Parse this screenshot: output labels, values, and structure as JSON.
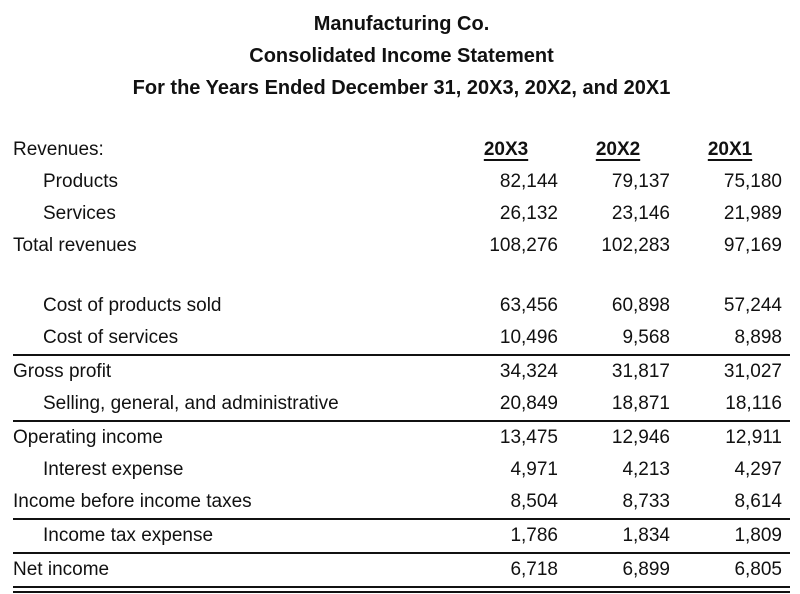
{
  "colors": {
    "background": "#ffffff",
    "text": "#111111",
    "rule": "#111111"
  },
  "header": {
    "company": "Manufacturing Co.",
    "statement_title": "Consolidated Income Statement",
    "period": "For the Years Ended December 31, 20X3, 20X2, and 20X1"
  },
  "statement": {
    "section_header": "Revenues:",
    "year_columns": [
      "20X3",
      "20X2",
      "20X1"
    ],
    "rows": [
      {
        "label": "Products",
        "indent": true,
        "values": [
          "82,144",
          "79,137",
          "75,180"
        ]
      },
      {
        "label": "Services",
        "indent": true,
        "values": [
          "26,132",
          "23,146",
          "21,989"
        ]
      },
      {
        "label": "Total revenues",
        "indent": false,
        "values": [
          "108,276",
          "102,283",
          "97,169"
        ]
      },
      {
        "label": "Cost of products sold",
        "indent": true,
        "values": [
          "63,456",
          "60,898",
          "57,244"
        ]
      },
      {
        "label": "Cost of services",
        "indent": true,
        "values": [
          "10,496",
          "9,568",
          "8,898"
        ]
      },
      {
        "label": "Gross profit",
        "indent": false,
        "values": [
          "34,324",
          "31,817",
          "31,027"
        ]
      },
      {
        "label": "Selling, general, and administrative",
        "indent": true,
        "values": [
          "20,849",
          "18,871",
          "18,116"
        ]
      },
      {
        "label": "Operating income",
        "indent": false,
        "values": [
          "13,475",
          "12,946",
          "12,911"
        ]
      },
      {
        "label": "Interest expense",
        "indent": true,
        "values": [
          "4,971",
          "4,213",
          "4,297"
        ]
      },
      {
        "label": "Income before income taxes",
        "indent": false,
        "values": [
          "8,504",
          "8,733",
          "8,614"
        ]
      },
      {
        "label": "Income tax expense",
        "indent": true,
        "values": [
          "1,786",
          "1,834",
          "1,809"
        ]
      },
      {
        "label": "Net income",
        "indent": false,
        "values": [
          "6,718",
          "6,899",
          "6,805"
        ]
      }
    ]
  }
}
